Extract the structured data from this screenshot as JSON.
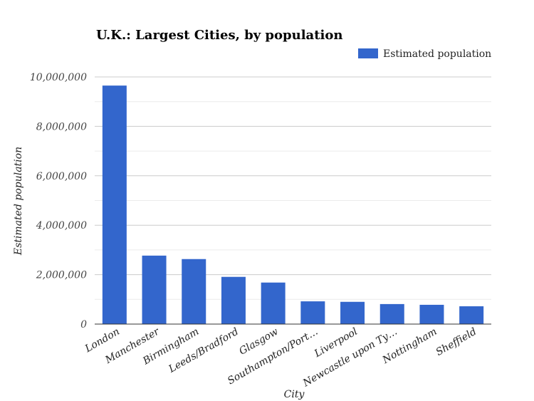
{
  "chart_data": {
    "type": "bar",
    "title": "U.K.: Largest Cities, by population",
    "xlabel": "City",
    "ylabel": "Estimated population",
    "ylim": [
      0,
      10000000
    ],
    "yticks": [
      "0",
      "2,000,000",
      "4,000,000",
      "6,000,000",
      "8,000,000",
      "10,000,000"
    ],
    "grid": true,
    "legend_position": "top-right",
    "bar_color": "#3366cc",
    "categories": [
      "London",
      "Manchester",
      "Birmingham",
      "Leeds/Bradford",
      "Glasgow",
      "Southampton/Port…",
      "Liverpool",
      "Newcastle upon Ty…",
      "Nottingham",
      "Sheffield"
    ],
    "series": [
      {
        "name": "Estimated population",
        "values": [
          9650000,
          2770000,
          2630000,
          1910000,
          1680000,
          920000,
          900000,
          810000,
          780000,
          720000
        ]
      }
    ]
  }
}
